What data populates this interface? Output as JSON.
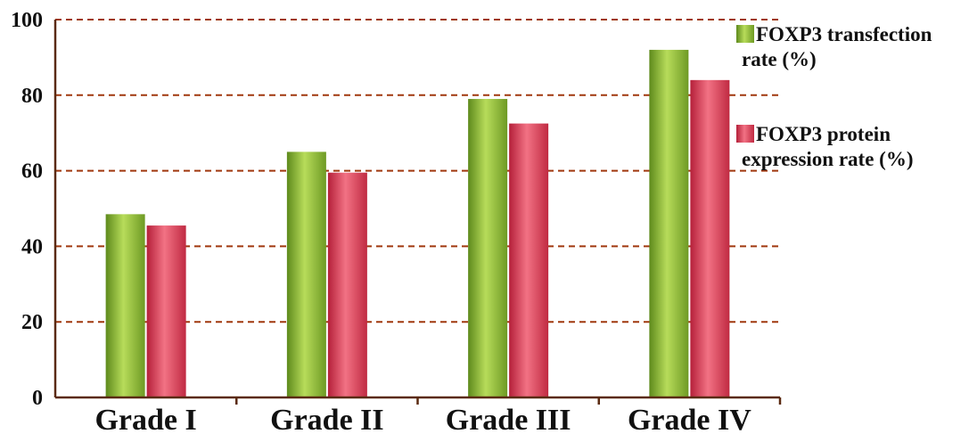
{
  "chart_data": {
    "type": "bar",
    "title": "",
    "xlabel": "",
    "ylabel": "",
    "categories": [
      "Grade I",
      "Grade II",
      "Grade III",
      "Grade IV"
    ],
    "series": [
      {
        "name": "FOXP3 transfection rate (%)",
        "legend_lines": [
          "FOXP3 transfection",
          "rate (%)"
        ],
        "values": [
          48.5,
          65,
          79,
          92
        ],
        "color": "#8db83a"
      },
      {
        "name": "FOXP3 protein expression rate (%)",
        "legend_lines": [
          "FOXP3 protein",
          "expression rate (%)"
        ],
        "values": [
          45.5,
          59.5,
          72.5,
          84
        ],
        "color": "#e0445a"
      }
    ],
    "ylim": [
      0,
      100
    ],
    "yticks": [
      0,
      20,
      40,
      60,
      80,
      100
    ],
    "grid": true,
    "legend_position": "right"
  }
}
